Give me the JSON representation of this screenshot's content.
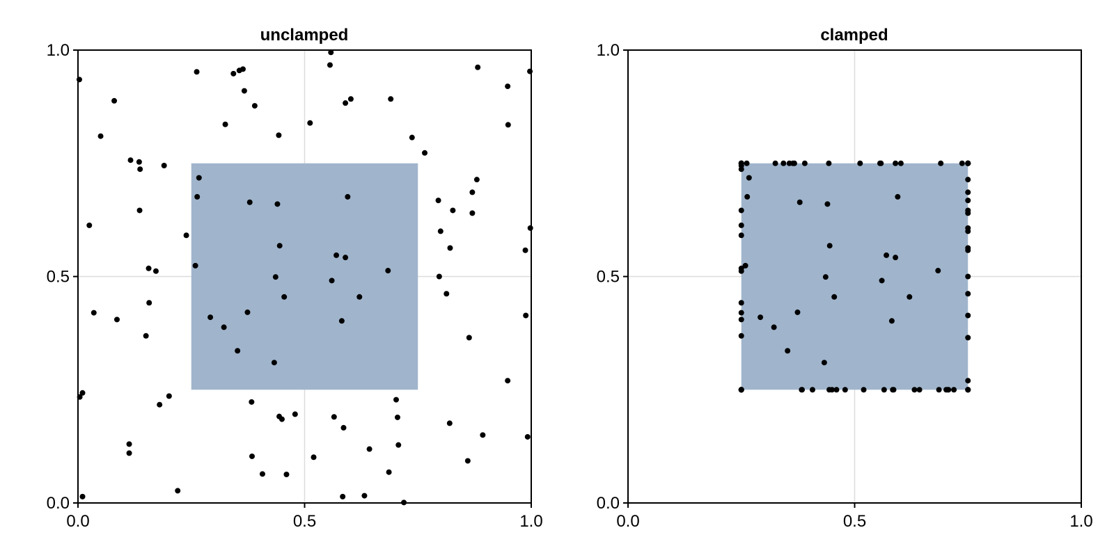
{
  "colors": {
    "rect_fill": "#a0b5cc",
    "grid": "#dcdcdc",
    "axis": "#000000",
    "point": "#000000"
  },
  "chart_data": [
    {
      "type": "scatter",
      "title": "unclamped",
      "xlabel": "",
      "ylabel": "",
      "xlim": [
        0,
        1
      ],
      "ylim": [
        0,
        1
      ],
      "x_ticks": [
        "0.0",
        "0.5",
        "1.0"
      ],
      "y_ticks": [
        "0.0",
        "0.5",
        "1.0"
      ],
      "grid": true,
      "rectangle": {
        "x0": 0.25,
        "y0": 0.25,
        "x1": 0.75,
        "y1": 0.75
      },
      "points": [
        [
          0.003,
          0.935
        ],
        [
          0.262,
          0.952
        ],
        [
          0.343,
          0.948
        ],
        [
          0.356,
          0.955
        ],
        [
          0.364,
          0.958
        ],
        [
          0.556,
          0.967
        ],
        [
          0.558,
          0.995
        ],
        [
          0.882,
          0.962
        ],
        [
          0.997,
          0.953
        ],
        [
          0.08,
          0.888
        ],
        [
          0.367,
          0.91
        ],
        [
          0.39,
          0.877
        ],
        [
          0.59,
          0.883
        ],
        [
          0.602,
          0.892
        ],
        [
          0.69,
          0.892
        ],
        [
          0.948,
          0.92
        ],
        [
          0.325,
          0.836
        ],
        [
          0.05,
          0.81
        ],
        [
          0.443,
          0.812
        ],
        [
          0.512,
          0.839
        ],
        [
          0.737,
          0.807
        ],
        [
          0.949,
          0.835
        ],
        [
          0.765,
          0.773
        ],
        [
          0.116,
          0.757
        ],
        [
          0.135,
          0.753
        ],
        [
          0.137,
          0.737
        ],
        [
          0.19,
          0.745
        ],
        [
          0.267,
          0.718
        ],
        [
          0.88,
          0.714
        ],
        [
          0.263,
          0.676
        ],
        [
          0.595,
          0.676
        ],
        [
          0.379,
          0.664
        ],
        [
          0.44,
          0.66
        ],
        [
          0.795,
          0.668
        ],
        [
          0.87,
          0.686
        ],
        [
          0.136,
          0.646
        ],
        [
          0.827,
          0.646
        ],
        [
          0.87,
          0.64
        ],
        [
          0.025,
          0.613
        ],
        [
          0.239,
          0.591
        ],
        [
          0.8,
          0.6
        ],
        [
          0.998,
          0.607
        ],
        [
          0.445,
          0.568
        ],
        [
          0.821,
          0.563
        ],
        [
          0.987,
          0.558
        ],
        [
          0.57,
          0.547
        ],
        [
          0.59,
          0.542
        ],
        [
          0.259,
          0.524
        ],
        [
          0.156,
          0.518
        ],
        [
          0.172,
          0.512
        ],
        [
          0.684,
          0.513
        ],
        [
          0.436,
          0.499
        ],
        [
          0.797,
          0.5
        ],
        [
          0.56,
          0.491
        ],
        [
          0.455,
          0.455
        ],
        [
          0.621,
          0.455
        ],
        [
          0.813,
          0.462
        ],
        [
          0.157,
          0.442
        ],
        [
          0.035,
          0.42
        ],
        [
          0.374,
          0.421
        ],
        [
          0.988,
          0.414
        ],
        [
          0.292,
          0.41
        ],
        [
          0.086,
          0.405
        ],
        [
          0.582,
          0.402
        ],
        [
          0.322,
          0.388
        ],
        [
          0.15,
          0.369
        ],
        [
          0.863,
          0.365
        ],
        [
          0.352,
          0.336
        ],
        [
          0.433,
          0.31
        ],
        [
          0.948,
          0.27
        ],
        [
          0.01,
          0.243
        ],
        [
          0.004,
          0.234
        ],
        [
          0.201,
          0.236
        ],
        [
          0.702,
          0.228
        ],
        [
          0.18,
          0.217
        ],
        [
          0.383,
          0.223
        ],
        [
          0.444,
          0.191
        ],
        [
          0.45,
          0.185
        ],
        [
          0.479,
          0.196
        ],
        [
          0.565,
          0.19
        ],
        [
          0.705,
          0.189
        ],
        [
          0.586,
          0.166
        ],
        [
          0.82,
          0.176
        ],
        [
          0.893,
          0.15
        ],
        [
          0.992,
          0.146
        ],
        [
          0.113,
          0.13
        ],
        [
          0.707,
          0.128
        ],
        [
          0.113,
          0.11
        ],
        [
          0.643,
          0.119
        ],
        [
          0.384,
          0.103
        ],
        [
          0.52,
          0.101
        ],
        [
          0.86,
          0.093
        ],
        [
          0.407,
          0.064
        ],
        [
          0.46,
          0.063
        ],
        [
          0.686,
          0.068
        ],
        [
          0.22,
          0.027
        ],
        [
          0.01,
          0.014
        ],
        [
          0.584,
          0.014
        ],
        [
          0.632,
          0.016
        ],
        [
          0.719,
          0.001
        ]
      ]
    },
    {
      "type": "scatter",
      "title": "clamped",
      "xlabel": "",
      "ylabel": "",
      "xlim": [
        0,
        1
      ],
      "ylim": [
        0,
        1
      ],
      "x_ticks": [
        "0.0",
        "0.5",
        "1.0"
      ],
      "y_ticks": [
        "0.0",
        "0.5",
        "1.0"
      ],
      "grid": true,
      "rectangle": {
        "x0": 0.25,
        "y0": 0.25,
        "x1": 0.75,
        "y1": 0.75
      },
      "points": [
        [
          0.25,
          0.75
        ],
        [
          0.262,
          0.75
        ],
        [
          0.343,
          0.75
        ],
        [
          0.356,
          0.75
        ],
        [
          0.364,
          0.75
        ],
        [
          0.556,
          0.75
        ],
        [
          0.558,
          0.75
        ],
        [
          0.75,
          0.75
        ],
        [
          0.75,
          0.75
        ],
        [
          0.25,
          0.75
        ],
        [
          0.367,
          0.75
        ],
        [
          0.39,
          0.75
        ],
        [
          0.59,
          0.75
        ],
        [
          0.602,
          0.75
        ],
        [
          0.69,
          0.75
        ],
        [
          0.75,
          0.75
        ],
        [
          0.325,
          0.75
        ],
        [
          0.25,
          0.75
        ],
        [
          0.443,
          0.75
        ],
        [
          0.512,
          0.75
        ],
        [
          0.737,
          0.75
        ],
        [
          0.75,
          0.75
        ],
        [
          0.75,
          0.75
        ],
        [
          0.25,
          0.75
        ],
        [
          0.25,
          0.75
        ],
        [
          0.25,
          0.737
        ],
        [
          0.25,
          0.745
        ],
        [
          0.267,
          0.718
        ],
        [
          0.75,
          0.714
        ],
        [
          0.263,
          0.676
        ],
        [
          0.595,
          0.676
        ],
        [
          0.379,
          0.664
        ],
        [
          0.44,
          0.66
        ],
        [
          0.75,
          0.668
        ],
        [
          0.75,
          0.686
        ],
        [
          0.25,
          0.646
        ],
        [
          0.75,
          0.646
        ],
        [
          0.75,
          0.64
        ],
        [
          0.25,
          0.613
        ],
        [
          0.25,
          0.591
        ],
        [
          0.75,
          0.6
        ],
        [
          0.75,
          0.607
        ],
        [
          0.445,
          0.568
        ],
        [
          0.75,
          0.563
        ],
        [
          0.75,
          0.558
        ],
        [
          0.57,
          0.547
        ],
        [
          0.59,
          0.542
        ],
        [
          0.259,
          0.524
        ],
        [
          0.25,
          0.518
        ],
        [
          0.25,
          0.512
        ],
        [
          0.684,
          0.513
        ],
        [
          0.436,
          0.499
        ],
        [
          0.75,
          0.5
        ],
        [
          0.56,
          0.491
        ],
        [
          0.455,
          0.455
        ],
        [
          0.621,
          0.455
        ],
        [
          0.75,
          0.462
        ],
        [
          0.25,
          0.442
        ],
        [
          0.25,
          0.42
        ],
        [
          0.374,
          0.421
        ],
        [
          0.75,
          0.414
        ],
        [
          0.292,
          0.41
        ],
        [
          0.25,
          0.405
        ],
        [
          0.582,
          0.402
        ],
        [
          0.322,
          0.388
        ],
        [
          0.25,
          0.369
        ],
        [
          0.75,
          0.365
        ],
        [
          0.352,
          0.336
        ],
        [
          0.433,
          0.31
        ],
        [
          0.75,
          0.27
        ],
        [
          0.25,
          0.25
        ],
        [
          0.25,
          0.25
        ],
        [
          0.25,
          0.25
        ],
        [
          0.702,
          0.25
        ],
        [
          0.25,
          0.25
        ],
        [
          0.383,
          0.25
        ],
        [
          0.444,
          0.25
        ],
        [
          0.45,
          0.25
        ],
        [
          0.479,
          0.25
        ],
        [
          0.565,
          0.25
        ],
        [
          0.705,
          0.25
        ],
        [
          0.586,
          0.25
        ],
        [
          0.75,
          0.25
        ],
        [
          0.75,
          0.25
        ],
        [
          0.75,
          0.25
        ],
        [
          0.25,
          0.25
        ],
        [
          0.707,
          0.25
        ],
        [
          0.25,
          0.25
        ],
        [
          0.643,
          0.25
        ],
        [
          0.384,
          0.25
        ],
        [
          0.52,
          0.25
        ],
        [
          0.75,
          0.25
        ],
        [
          0.407,
          0.25
        ],
        [
          0.46,
          0.25
        ],
        [
          0.686,
          0.25
        ],
        [
          0.25,
          0.25
        ],
        [
          0.25,
          0.25
        ],
        [
          0.584,
          0.25
        ],
        [
          0.632,
          0.25
        ],
        [
          0.719,
          0.25
        ]
      ]
    }
  ]
}
